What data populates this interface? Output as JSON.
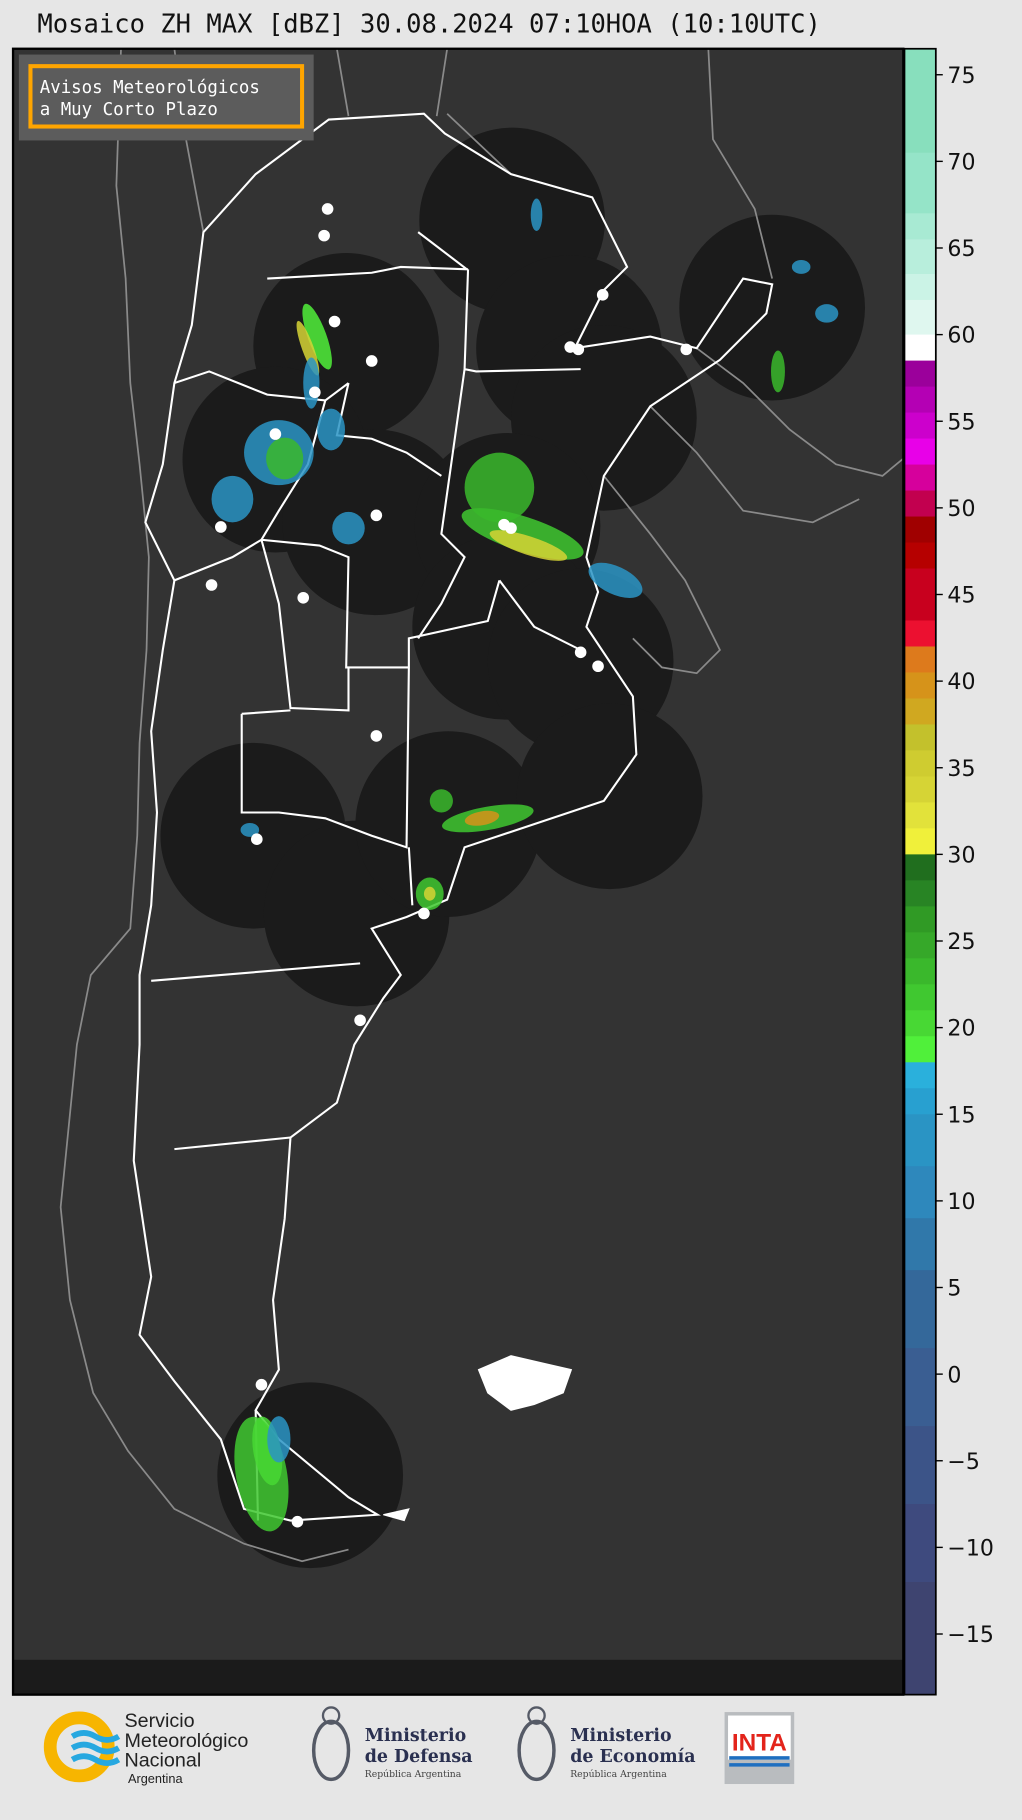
{
  "title": "Mosaico ZH MAX [dBZ] 30.08.2024 07:10HOA (10:10UTC)",
  "notice": {
    "line1": "Avisos Meteorológicos",
    "line2": "a Muy Corto Plazo",
    "border_color": "#ffa500"
  },
  "colorbar": {
    "unit": "dBZ",
    "range": [
      -18.5,
      76.5
    ],
    "ticks": [
      {
        "value": 75,
        "label": "75"
      },
      {
        "value": 70,
        "label": "70"
      },
      {
        "value": 65,
        "label": "65"
      },
      {
        "value": 60,
        "label": "60"
      },
      {
        "value": 55,
        "label": "55"
      },
      {
        "value": 50,
        "label": "50"
      },
      {
        "value": 45,
        "label": "45"
      },
      {
        "value": 40,
        "label": "40"
      },
      {
        "value": 35,
        "label": "35"
      },
      {
        "value": 30,
        "label": "30"
      },
      {
        "value": 25,
        "label": "25"
      },
      {
        "value": 20,
        "label": "20"
      },
      {
        "value": 15,
        "label": "15"
      },
      {
        "value": 10,
        "label": "10"
      },
      {
        "value": 5,
        "label": "5"
      },
      {
        "value": 0,
        "label": "0"
      },
      {
        "value": -5,
        "label": "−5"
      },
      {
        "value": -10,
        "label": "−10"
      },
      {
        "value": -15,
        "label": "−15"
      }
    ],
    "bands": [
      {
        "from": 70.5,
        "to": 76.5,
        "color": "#88dfbd"
      },
      {
        "from": 67,
        "to": 70.5,
        "color": "#95e4c8"
      },
      {
        "from": 65.5,
        "to": 67,
        "color": "#a8ead3"
      },
      {
        "from": 63.5,
        "to": 65.5,
        "color": "#b8eedc"
      },
      {
        "from": 62,
        "to": 63.5,
        "color": "#cbf3e6"
      },
      {
        "from": 60,
        "to": 62,
        "color": "#dff7ef"
      },
      {
        "from": 58.5,
        "to": 60,
        "color": "#ffffff"
      },
      {
        "from": 57,
        "to": 58.5,
        "color": "#9b009b"
      },
      {
        "from": 55.5,
        "to": 57,
        "color": "#b400b4"
      },
      {
        "from": 54,
        "to": 55.5,
        "color": "#cc00cc"
      },
      {
        "from": 52.5,
        "to": 54,
        "color": "#e800e8"
      },
      {
        "from": 51,
        "to": 52.5,
        "color": "#d6009c"
      },
      {
        "from": 49.5,
        "to": 51,
        "color": "#c2004f"
      },
      {
        "from": 48,
        "to": 49.5,
        "color": "#a00000"
      },
      {
        "from": 46.5,
        "to": 48,
        "color": "#b60000"
      },
      {
        "from": 43.5,
        "to": 46.5,
        "color": "#c8001e"
      },
      {
        "from": 42,
        "to": 43.5,
        "color": "#ec1030"
      },
      {
        "from": 40.5,
        "to": 42,
        "color": "#dd7a1c"
      },
      {
        "from": 39,
        "to": 40.5,
        "color": "#d6931a"
      },
      {
        "from": 37.5,
        "to": 39,
        "color": "#d0a820"
      },
      {
        "from": 36,
        "to": 37.5,
        "color": "#c3c12c"
      },
      {
        "from": 34.5,
        "to": 36,
        "color": "#cfcc30"
      },
      {
        "from": 33,
        "to": 34.5,
        "color": "#d6d435"
      },
      {
        "from": 31.5,
        "to": 33,
        "color": "#e2e23a"
      },
      {
        "from": 30,
        "to": 31.5,
        "color": "#f0f03a"
      },
      {
        "from": 28.5,
        "to": 30,
        "color": "#206e1e"
      },
      {
        "from": 27,
        "to": 28.5,
        "color": "#288424"
      },
      {
        "from": 25.5,
        "to": 27,
        "color": "#309a25"
      },
      {
        "from": 24,
        "to": 25.5,
        "color": "#36a829"
      },
      {
        "from": 22.5,
        "to": 24,
        "color": "#3ab82c"
      },
      {
        "from": 21,
        "to": 22.5,
        "color": "#40c830"
      },
      {
        "from": 19.5,
        "to": 21,
        "color": "#48d834"
      },
      {
        "from": 18,
        "to": 19.5,
        "color": "#50f03a"
      },
      {
        "from": 16.5,
        "to": 18,
        "color": "#2ab0dc"
      },
      {
        "from": 15,
        "to": 16.5,
        "color": "#28a0d0"
      },
      {
        "from": 12,
        "to": 15,
        "color": "#2a94c4"
      },
      {
        "from": 9,
        "to": 12,
        "color": "#2e88bc"
      },
      {
        "from": 6,
        "to": 9,
        "color": "#3078aa"
      },
      {
        "from": 1.5,
        "to": 6,
        "color": "#34689a"
      },
      {
        "from": -3,
        "to": 1.5,
        "color": "#3a5e92"
      },
      {
        "from": -7.5,
        "to": -3,
        "color": "#3c5488"
      },
      {
        "from": -12,
        "to": -7.5,
        "color": "#3e4a7e"
      },
      {
        "from": -18.5,
        "to": -12,
        "color": "#3e4470"
      }
    ]
  },
  "map": {
    "background_color": "#333333",
    "radar_coverage_color": "#1b1b1b",
    "province_border_color": "#ffffff",
    "neighbor_border_color": "#8a8a8a"
  },
  "footer": {
    "smn": {
      "line1": "Servicio",
      "line2": "Meteorológico",
      "line3": "Nacional",
      "line4": "Argentina"
    },
    "defensa": {
      "line1": "Ministerio",
      "line2": "de Defensa",
      "line3": "República Argentina"
    },
    "economia": {
      "line1": "Ministerio",
      "line2": "de Economía",
      "line3": "República Argentina"
    },
    "inta": {
      "label": "INTA"
    }
  }
}
